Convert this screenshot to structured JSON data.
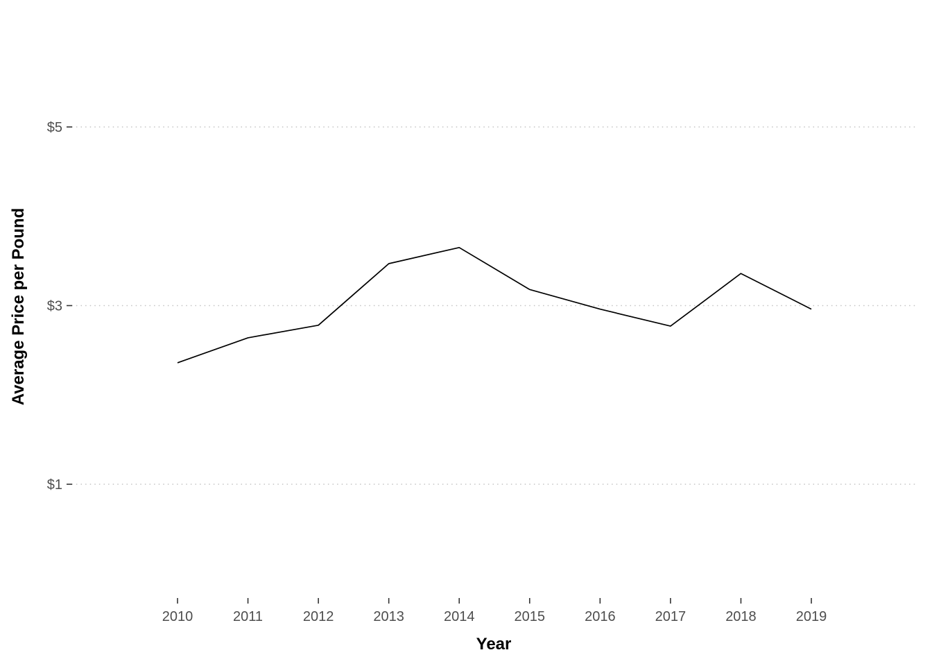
{
  "chart_data": {
    "type": "line",
    "title": "",
    "xlabel": "Year",
    "ylabel": "Average Price per Pound",
    "categories": [
      2010,
      2011,
      2012,
      2013,
      2014,
      2015,
      2016,
      2017,
      2018,
      2019
    ],
    "series": [
      {
        "name": "Average Price per Pound",
        "values": [
          2.36,
          2.64,
          2.78,
          3.47,
          3.65,
          3.18,
          2.96,
          2.77,
          3.36,
          2.96
        ]
      }
    ],
    "yticks": [
      1,
      3,
      5
    ],
    "ytick_labels": [
      "$1",
      "$3",
      "$5"
    ],
    "ylim": [
      -0.3,
      6.4
    ],
    "grid": "horizontal-dotted-major-only",
    "legend": "none",
    "line_color": "#000000",
    "gridline_color": "#c6c6c6",
    "tick_label_color": "#4d4d4d"
  }
}
